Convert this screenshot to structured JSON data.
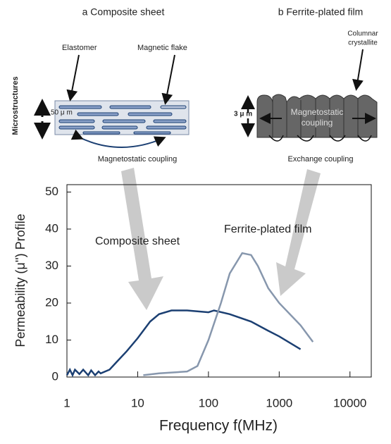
{
  "diagrams": {
    "side_label": "Microstructures",
    "a": {
      "title": "a  Composite sheet",
      "elastomer": "Elastomer",
      "flake": "Magnetic flake",
      "thickness": "50 μ m",
      "coupling": "Magnetostatic coupling"
    },
    "b": {
      "title": "b  Ferrite-plated film",
      "columnar": [
        "Columnar",
        "crystallite"
      ],
      "thickness": "3 μ m",
      "inner": [
        "Magnetostatic",
        "coupling"
      ],
      "coupling": "Exchange coupling"
    }
  },
  "chart_data": {
    "type": "line",
    "x_label": "Frequency f(MHz)",
    "y_label": "Permeability (μ'') Profile",
    "xscale": "log",
    "xlim": [
      1,
      20000
    ],
    "xticks": [
      1,
      10,
      100,
      1000,
      10000
    ],
    "ylim": [
      0,
      52
    ],
    "yticks": [
      0,
      10,
      20,
      30,
      40,
      50
    ],
    "series": [
      {
        "name": "Composite sheet",
        "color": "#1b3f72",
        "x": [
          1,
          1.1,
          1.2,
          1.3,
          1.5,
          1.7,
          2,
          2.2,
          2.5,
          2.8,
          3,
          4,
          5,
          7,
          10,
          15,
          20,
          30,
          50,
          100,
          120,
          200,
          400,
          700,
          1000,
          2000
        ],
        "values": [
          0.5,
          2,
          0.5,
          2,
          0.8,
          2,
          0.5,
          1.8,
          0.5,
          1.5,
          1,
          2,
          4,
          7,
          10.5,
          15,
          17,
          18,
          18,
          17.5,
          18,
          17,
          15,
          12.5,
          11,
          7.5
        ]
      },
      {
        "name": "Ferrite-plated film",
        "color": "#8797ad",
        "x": [
          12,
          20,
          50,
          70,
          100,
          150,
          200,
          300,
          400,
          500,
          700,
          1000,
          2000,
          3000
        ],
        "values": [
          0.5,
          1,
          1.5,
          3,
          10,
          20,
          28,
          33.5,
          33,
          30,
          24,
          20,
          14,
          9.5
        ]
      }
    ]
  }
}
